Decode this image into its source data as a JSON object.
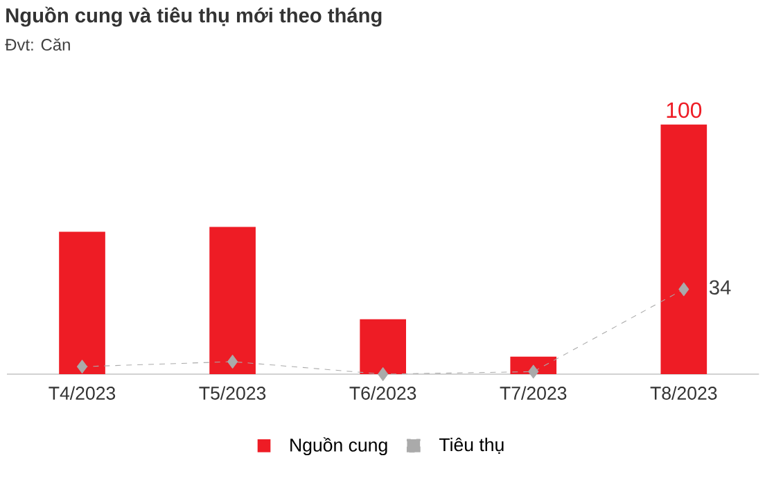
{
  "chart_data": {
    "type": "bar",
    "title": "Nguồn cung và tiêu thụ mới theo tháng",
    "subtitle": "Đvt: Căn",
    "categories": [
      "T4/2023",
      "T5/2023",
      "T6/2023",
      "T7/2023",
      "T8/2023"
    ],
    "legend": "bottom",
    "series": [
      {
        "name": "Nguồn cung",
        "color": "#ee1c25",
        "values": [
          57,
          59,
          22,
          7,
          100
        ],
        "value_labels": [
          null,
          null,
          null,
          null,
          "100"
        ]
      },
      {
        "name": "Tiêu thụ",
        "type": "line",
        "color": "#aaaaaa",
        "marker": "diamond",
        "line_style": "dashed",
        "values": [
          3,
          5,
          0,
          1,
          34
        ],
        "value_labels": [
          null,
          null,
          null,
          null,
          "34"
        ]
      }
    ]
  }
}
